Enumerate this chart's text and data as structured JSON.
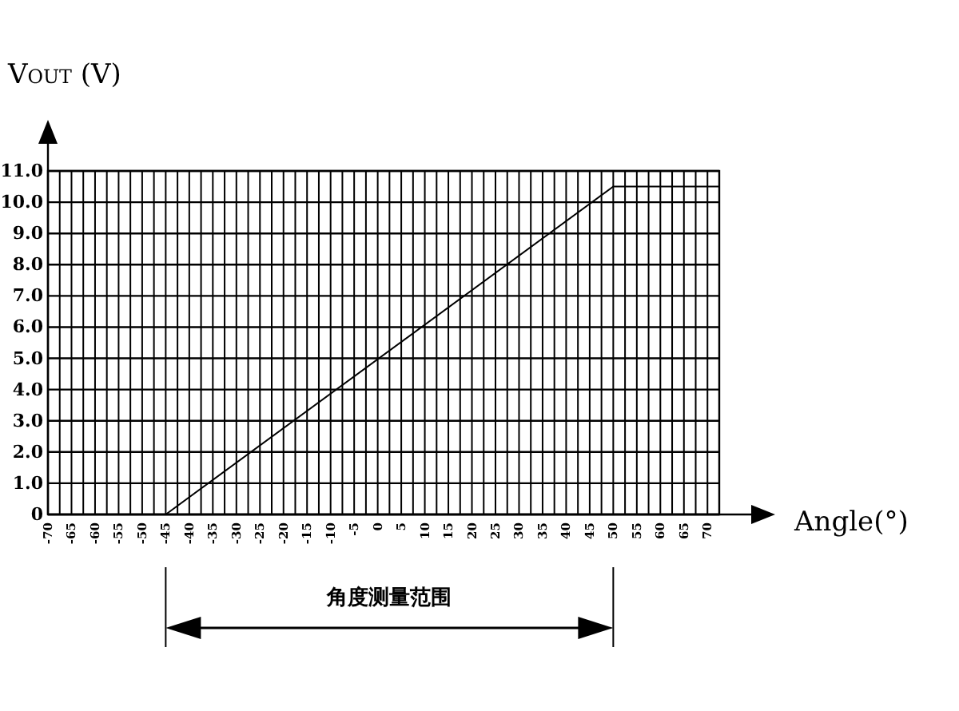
{
  "chart_data": {
    "type": "line",
    "xlabel": "Angle(°)",
    "ylabel": "V$_{OUT}$ (V)",
    "x": [
      -45,
      50,
      72.5
    ],
    "series": [
      {
        "color": "#000000",
        "values": [
          0,
          10.5,
          10.5
        ]
      }
    ],
    "xlim": [
      -70,
      72.5
    ],
    "xticks": [
      -70,
      {
        "value": -67.5,
        "label": null
      },
      -65,
      {
        "value": -62.5,
        "label": null
      },
      -60,
      {
        "value": -57.5,
        "label": null
      },
      -55,
      {
        "value": -52.5,
        "label": null
      },
      -50,
      {
        "value": -47.5,
        "label": null
      },
      -45,
      {
        "value": -42.5,
        "label": null
      },
      -40,
      {
        "value": -37.5,
        "label": null
      },
      -35,
      {
        "value": -32.5,
        "label": null
      },
      -30,
      {
        "value": -27.5,
        "label": null
      },
      -25,
      {
        "value": -22.5,
        "label": null
      },
      -20,
      {
        "value": -17.5,
        "label": null
      },
      -15,
      {
        "value": -12.5,
        "label": null
      },
      -10,
      {
        "value": -7.5,
        "label": null
      },
      -5,
      {
        "value": -2.5,
        "label": null
      },
      0,
      {
        "value": 2.5,
        "label": null
      },
      5,
      {
        "value": 7.5,
        "label": null
      },
      10,
      {
        "value": 12.5,
        "label": null
      },
      15,
      {
        "value": 17.5,
        "label": null
      },
      20,
      {
        "value": 22.5,
        "label": null
      },
      25,
      {
        "value": 27.5,
        "label": null
      },
      30,
      {
        "value": 32.5,
        "label": null
      },
      35,
      {
        "value": 37.5,
        "label": null
      },
      40,
      {
        "value": 42.5,
        "label": null
      },
      45,
      {
        "value": 47.5,
        "label": null
      },
      50,
      {
        "value": 52.5,
        "label": null
      },
      55,
      {
        "value": 57.5,
        "label": null
      },
      60,
      {
        "value": 62.5,
        "label": null
      },
      65,
      {
        "value": 67.5,
        "label": null
      },
      70
    ],
    "ylim": [
      0,
      11
    ],
    "yticks": [
      0,
      {
        "value": 1,
        "label": "1.0"
      },
      {
        "value": 2,
        "label": "2.0"
      },
      {
        "value": 3,
        "label": "3.0"
      },
      {
        "value": 4,
        "label": "4.0"
      },
      {
        "value": 5,
        "label": "5.0"
      },
      {
        "value": 6,
        "label": "6.0"
      },
      {
        "value": 7,
        "label": "7.0"
      },
      {
        "value": 8,
        "label": "8.0"
      },
      {
        "value": 9,
        "label": "9.0"
      },
      {
        "value": 10,
        "label": "10.0"
      },
      {
        "value": 11,
        "label": "11.0"
      }
    ],
    "grid": true,
    "annotations": [
      "角度测量范围"
    ]
  }
}
